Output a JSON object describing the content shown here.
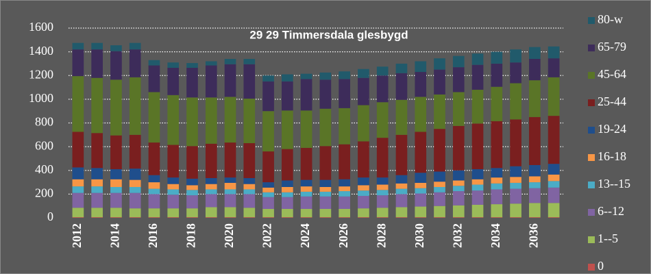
{
  "chart_data": {
    "type": "stacked_bar",
    "title": "29 29 Timmersdala glesbygd",
    "categories": [
      "2012",
      null,
      "2014",
      null,
      "2016",
      null,
      "2018",
      null,
      "2020",
      null,
      "2022",
      null,
      "2024",
      null,
      "2026",
      null,
      "2028",
      null,
      "2030",
      null,
      "2032",
      null,
      "2034",
      null,
      "2036",
      null
    ],
    "series": [
      {
        "name": "0",
        "color": "#c0504d",
        "values": [
          5,
          5,
          5,
          5,
          5,
          5,
          5,
          5,
          5,
          5,
          5,
          5,
          5,
          5,
          5,
          5,
          5,
          5,
          5,
          5,
          5,
          5,
          5,
          5,
          5,
          5
        ]
      },
      {
        "name": "1--5",
        "color": "#9bbb59",
        "values": [
          80,
          80,
          80,
          75,
          75,
          75,
          75,
          85,
          85,
          80,
          70,
          70,
          70,
          70,
          70,
          75,
          80,
          85,
          90,
          95,
          100,
          105,
          110,
          115,
          120,
          120
        ]
      },
      {
        "name": "6--12",
        "color": "#8064a2",
        "values": [
          125,
          125,
          125,
          130,
          120,
          115,
          110,
          110,
          110,
          115,
          100,
          100,
          105,
          105,
          105,
          105,
          105,
          110,
          110,
          115,
          120,
          120,
          125,
          125,
          125,
          130
        ]
      },
      {
        "name": "13--15",
        "color": "#4bacc6",
        "values": [
          55,
          55,
          50,
          50,
          45,
          45,
          45,
          40,
          40,
          40,
          40,
          40,
          40,
          40,
          45,
          45,
          45,
          45,
          45,
          45,
          45,
          50,
          50,
          50,
          50,
          55
        ]
      },
      {
        "name": "16-18",
        "color": "#f79646",
        "values": [
          60,
          60,
          65,
          60,
          55,
          45,
          40,
          45,
          55,
          45,
          40,
          45,
          45,
          40,
          40,
          45,
          45,
          45,
          45,
          45,
          45,
          45,
          50,
          50,
          50,
          55
        ]
      },
      {
        "name": "19-24",
        "color": "#1f4e8c",
        "values": [
          100,
          95,
          85,
          95,
          60,
          55,
          55,
          50,
          45,
          50,
          45,
          55,
          55,
          60,
          60,
          65,
          60,
          70,
          85,
          85,
          85,
          85,
          80,
          90,
          95,
          90
        ]
      },
      {
        "name": "25-44",
        "color": "#7a1f1f",
        "values": [
          300,
          295,
          285,
          285,
          275,
          275,
          275,
          290,
          295,
          295,
          260,
          265,
          270,
          285,
          295,
          305,
          335,
          340,
          345,
          360,
          375,
          385,
          395,
          395,
          405,
          405
        ]
      },
      {
        "name": "45-64",
        "color": "#5a7527",
        "values": [
          470,
          465,
          470,
          485,
          425,
          420,
          410,
          390,
          385,
          375,
          340,
          325,
          315,
          315,
          305,
          305,
          300,
          295,
          295,
          290,
          285,
          285,
          290,
          305,
          310,
          325
        ]
      },
      {
        "name": "65-79",
        "color": "#3d2c5a",
        "values": [
          225,
          240,
          240,
          235,
          225,
          230,
          250,
          270,
          275,
          290,
          250,
          245,
          265,
          245,
          245,
          230,
          225,
          225,
          210,
          210,
          210,
          210,
          195,
          175,
          180,
          160
        ]
      },
      {
        "name": "80-w",
        "color": "#215a6b",
        "values": [
          55,
          55,
          50,
          55,
          45,
          45,
          40,
          35,
          45,
          45,
          50,
          60,
          45,
          60,
          65,
          75,
          75,
          80,
          90,
          95,
          95,
          95,
          100,
          110,
          100,
          100
        ]
      }
    ],
    "ylim": [
      0,
      1600
    ],
    "yticks": [
      0,
      200,
      400,
      600,
      800,
      1000,
      1200,
      1400,
      1600
    ],
    "grid": true,
    "legend": "right"
  }
}
